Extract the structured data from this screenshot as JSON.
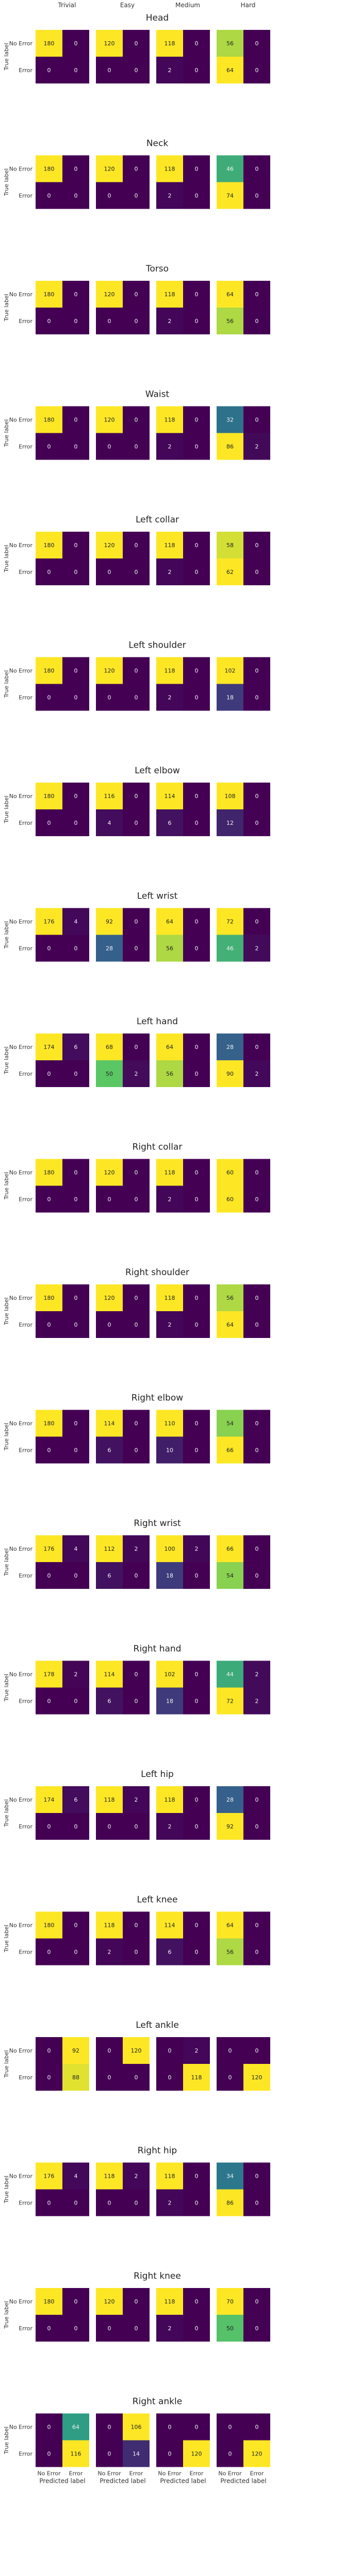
{
  "figure": {
    "difficulty_labels": [
      "Trivial",
      "Easy",
      "Medium",
      "Hard"
    ],
    "class_labels": [
      "No Error",
      "Error"
    ],
    "ylabel": "True label",
    "xlabel": "Predicted label"
  },
  "colormap": {
    "name": "viridis",
    "stops": [
      "#440154",
      "#3b528b",
      "#21918c",
      "#5ec962",
      "#fde725"
    ]
  },
  "chart_data": [
    {
      "type": "heatmap",
      "title": "Head",
      "matrices": [
        [
          [
            180,
            0
          ],
          [
            0,
            0
          ]
        ],
        [
          [
            120,
            0
          ],
          [
            0,
            0
          ]
        ],
        [
          [
            118,
            0
          ],
          [
            2,
            0
          ]
        ],
        [
          [
            56,
            0
          ],
          [
            64,
            0
          ]
        ]
      ]
    },
    {
      "type": "heatmap",
      "title": "Neck",
      "matrices": [
        [
          [
            180,
            0
          ],
          [
            0,
            0
          ]
        ],
        [
          [
            120,
            0
          ],
          [
            0,
            0
          ]
        ],
        [
          [
            118,
            0
          ],
          [
            2,
            0
          ]
        ],
        [
          [
            46,
            0
          ],
          [
            74,
            0
          ]
        ]
      ]
    },
    {
      "type": "heatmap",
      "title": "Torso",
      "matrices": [
        [
          [
            180,
            0
          ],
          [
            0,
            0
          ]
        ],
        [
          [
            120,
            0
          ],
          [
            0,
            0
          ]
        ],
        [
          [
            118,
            0
          ],
          [
            2,
            0
          ]
        ],
        [
          [
            64,
            0
          ],
          [
            56,
            0
          ]
        ]
      ]
    },
    {
      "type": "heatmap",
      "title": "Waist",
      "matrices": [
        [
          [
            180,
            0
          ],
          [
            0,
            0
          ]
        ],
        [
          [
            120,
            0
          ],
          [
            0,
            0
          ]
        ],
        [
          [
            118,
            0
          ],
          [
            2,
            0
          ]
        ],
        [
          [
            32,
            0
          ],
          [
            86,
            2
          ]
        ]
      ]
    },
    {
      "type": "heatmap",
      "title": "Left collar",
      "matrices": [
        [
          [
            180,
            0
          ],
          [
            0,
            0
          ]
        ],
        [
          [
            120,
            0
          ],
          [
            0,
            0
          ]
        ],
        [
          [
            118,
            0
          ],
          [
            2,
            0
          ]
        ],
        [
          [
            58,
            0
          ],
          [
            62,
            0
          ]
        ]
      ]
    },
    {
      "type": "heatmap",
      "title": "Left shoulder",
      "matrices": [
        [
          [
            180,
            0
          ],
          [
            0,
            0
          ]
        ],
        [
          [
            120,
            0
          ],
          [
            0,
            0
          ]
        ],
        [
          [
            118,
            0
          ],
          [
            2,
            0
          ]
        ],
        [
          [
            102,
            0
          ],
          [
            18,
            0
          ]
        ]
      ]
    },
    {
      "type": "heatmap",
      "title": "Left elbow",
      "matrices": [
        [
          [
            180,
            0
          ],
          [
            0,
            0
          ]
        ],
        [
          [
            116,
            0
          ],
          [
            4,
            0
          ]
        ],
        [
          [
            114,
            0
          ],
          [
            6,
            0
          ]
        ],
        [
          [
            108,
            0
          ],
          [
            12,
            0
          ]
        ]
      ]
    },
    {
      "type": "heatmap",
      "title": "Left wrist",
      "matrices": [
        [
          [
            176,
            4
          ],
          [
            0,
            0
          ]
        ],
        [
          [
            92,
            0
          ],
          [
            28,
            0
          ]
        ],
        [
          [
            64,
            0
          ],
          [
            56,
            0
          ]
        ],
        [
          [
            72,
            0
          ],
          [
            46,
            2
          ]
        ]
      ]
    },
    {
      "type": "heatmap",
      "title": "Left hand",
      "matrices": [
        [
          [
            174,
            6
          ],
          [
            0,
            0
          ]
        ],
        [
          [
            68,
            0
          ],
          [
            50,
            2
          ]
        ],
        [
          [
            64,
            0
          ],
          [
            56,
            0
          ]
        ],
        [
          [
            28,
            0
          ],
          [
            90,
            2
          ]
        ]
      ]
    },
    {
      "type": "heatmap",
      "title": "Right collar",
      "matrices": [
        [
          [
            180,
            0
          ],
          [
            0,
            0
          ]
        ],
        [
          [
            120,
            0
          ],
          [
            0,
            0
          ]
        ],
        [
          [
            118,
            0
          ],
          [
            2,
            0
          ]
        ],
        [
          [
            60,
            0
          ],
          [
            60,
            0
          ]
        ]
      ]
    },
    {
      "type": "heatmap",
      "title": "Right shoulder",
      "matrices": [
        [
          [
            180,
            0
          ],
          [
            0,
            0
          ]
        ],
        [
          [
            120,
            0
          ],
          [
            0,
            0
          ]
        ],
        [
          [
            118,
            0
          ],
          [
            2,
            0
          ]
        ],
        [
          [
            56,
            0
          ],
          [
            64,
            0
          ]
        ]
      ]
    },
    {
      "type": "heatmap",
      "title": "Right elbow",
      "matrices": [
        [
          [
            180,
            0
          ],
          [
            0,
            0
          ]
        ],
        [
          [
            114,
            0
          ],
          [
            6,
            0
          ]
        ],
        [
          [
            110,
            0
          ],
          [
            10,
            0
          ]
        ],
        [
          [
            54,
            0
          ],
          [
            66,
            0
          ]
        ]
      ]
    },
    {
      "type": "heatmap",
      "title": "Right wrist",
      "matrices": [
        [
          [
            176,
            4
          ],
          [
            0,
            0
          ]
        ],
        [
          [
            112,
            2
          ],
          [
            6,
            0
          ]
        ],
        [
          [
            100,
            2
          ],
          [
            18,
            0
          ]
        ],
        [
          [
            66,
            0
          ],
          [
            54,
            0
          ]
        ]
      ]
    },
    {
      "type": "heatmap",
      "title": "Right hand",
      "matrices": [
        [
          [
            178,
            2
          ],
          [
            0,
            0
          ]
        ],
        [
          [
            114,
            0
          ],
          [
            6,
            0
          ]
        ],
        [
          [
            102,
            0
          ],
          [
            18,
            0
          ]
        ],
        [
          [
            44,
            2
          ],
          [
            72,
            2
          ]
        ]
      ]
    },
    {
      "type": "heatmap",
      "title": "Left hip",
      "matrices": [
        [
          [
            174,
            6
          ],
          [
            0,
            0
          ]
        ],
        [
          [
            118,
            2
          ],
          [
            0,
            0
          ]
        ],
        [
          [
            118,
            0
          ],
          [
            2,
            0
          ]
        ],
        [
          [
            28,
            0
          ],
          [
            92,
            0
          ]
        ]
      ]
    },
    {
      "type": "heatmap",
      "title": "Left knee",
      "matrices": [
        [
          [
            180,
            0
          ],
          [
            0,
            0
          ]
        ],
        [
          [
            118,
            0
          ],
          [
            2,
            0
          ]
        ],
        [
          [
            114,
            0
          ],
          [
            6,
            0
          ]
        ],
        [
          [
            64,
            0
          ],
          [
            56,
            0
          ]
        ]
      ]
    },
    {
      "type": "heatmap",
      "title": "Left ankle",
      "matrices": [
        [
          [
            0,
            92
          ],
          [
            0,
            88
          ]
        ],
        [
          [
            0,
            120
          ],
          [
            0,
            0
          ]
        ],
        [
          [
            0,
            2
          ],
          [
            0,
            118
          ]
        ],
        [
          [
            0,
            0
          ],
          [
            0,
            120
          ]
        ]
      ]
    },
    {
      "type": "heatmap",
      "title": "Right hip",
      "matrices": [
        [
          [
            176,
            4
          ],
          [
            0,
            0
          ]
        ],
        [
          [
            118,
            2
          ],
          [
            0,
            0
          ]
        ],
        [
          [
            118,
            0
          ],
          [
            2,
            0
          ]
        ],
        [
          [
            34,
            0
          ],
          [
            86,
            0
          ]
        ]
      ]
    },
    {
      "type": "heatmap",
      "title": "Right knee",
      "matrices": [
        [
          [
            180,
            0
          ],
          [
            0,
            0
          ]
        ],
        [
          [
            120,
            0
          ],
          [
            0,
            0
          ]
        ],
        [
          [
            118,
            0
          ],
          [
            2,
            0
          ]
        ],
        [
          [
            70,
            0
          ],
          [
            50,
            0
          ]
        ]
      ]
    },
    {
      "type": "heatmap",
      "title": "Right ankle",
      "matrices": [
        [
          [
            0,
            64
          ],
          [
            0,
            116
          ]
        ],
        [
          [
            0,
            106
          ],
          [
            0,
            14
          ]
        ],
        [
          [
            0,
            0
          ],
          [
            0,
            120
          ]
        ],
        [
          [
            0,
            0
          ],
          [
            0,
            120
          ]
        ]
      ]
    }
  ]
}
